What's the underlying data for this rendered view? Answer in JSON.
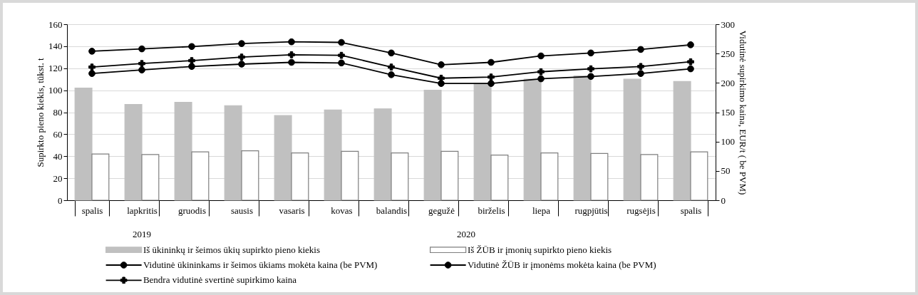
{
  "chart_data": {
    "type": "bar",
    "categories": [
      "spalis",
      "lapkritis",
      "gruodis",
      "sausis",
      "vasaris",
      "kovas",
      "balandis",
      "gegužė",
      "birželis",
      "liepa",
      "rugpjūtis",
      "rugsėjis",
      "spalis"
    ],
    "ylabel": "Supirkto pieno kiekis, tūkst. t",
    "y2label": "Vidutinė supirkimo kaina, EUR/t ( be PVM)",
    "ylim": [
      0,
      160
    ],
    "yticks": [
      0,
      20,
      40,
      60,
      80,
      100,
      120,
      140,
      160
    ],
    "y2lim": [
      0,
      300
    ],
    "y2ticks": [
      0,
      50,
      100,
      150,
      200,
      250,
      300
    ],
    "grid": "y",
    "legend": "bottom",
    "line_style": "solid",
    "annotations": [
      "2019",
      "2020"
    ],
    "series": [
      {
        "name": "Iš ūkininkų ir šeimos ūkių supirkto pieno kiekis",
        "color": "#c0c0c0",
        "values": [
          102,
          87,
          89,
          86,
          77,
          82,
          83,
          100,
          106,
          110,
          113,
          110,
          108
        ]
      },
      {
        "name": "Iš ŽŪB ir įmonių supirkto pieno kiekis",
        "color": "#ffffff",
        "values": [
          42,
          41.5,
          44,
          45,
          43,
          44.5,
          43,
          44.5,
          41,
          43,
          42.5,
          41.5,
          44
        ]
      },
      {
        "name": "Vidutinė ūkininkams ir šeimos ūkiams mokėta kaina (be PVM)",
        "type": "line",
        "axis": "y2",
        "color": "#000000",
        "marker": "circle",
        "values": [
          216,
          222,
          228,
          232,
          235,
          234,
          214,
          199,
          199,
          207,
          211,
          216,
          224
        ]
      },
      {
        "name": "Vidutinė ŽŪB ir įmonėms mokėta kaina (be PVM)",
        "type": "line",
        "axis": "y2",
        "color": "#000000",
        "marker": "circle",
        "values": [
          254,
          258,
          262,
          267,
          270,
          269,
          251,
          231,
          235,
          246,
          251,
          257,
          265
        ]
      },
      {
        "name": "Bendra vidutinė svertinė supirkimo kaina",
        "type": "line",
        "axis": "y2",
        "color": "#000000",
        "marker": "cross",
        "values": [
          227,
          233,
          238,
          244,
          248,
          247,
          227,
          208,
          210,
          219,
          224,
          228,
          236
        ]
      }
    ]
  }
}
